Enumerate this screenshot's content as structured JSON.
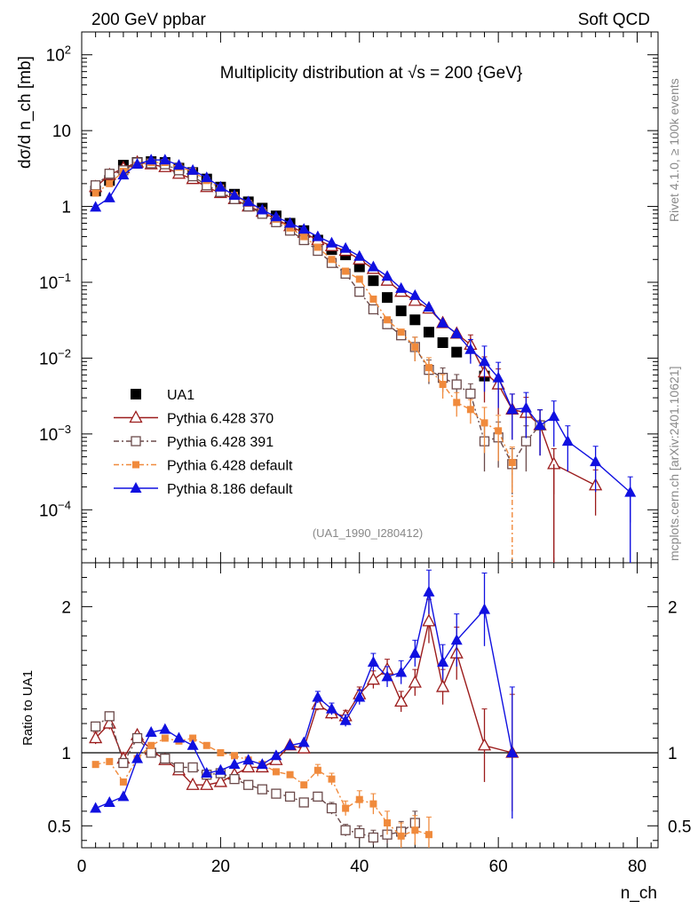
{
  "header": {
    "left": "200 GeV ppbar",
    "right": "Soft QCD"
  },
  "side": {
    "rivet": "Rivet 4.1.0, ≥ 100k events",
    "mcplots": "mcplots.cern.ch [arXiv:2401.10621]"
  },
  "chart_data": {
    "type": "scatter",
    "title": "Multiplicity distribution at √s = 200 {GeV}",
    "analysis_tag": "(UA1_1990_I280412)",
    "xlabel": "n_ch",
    "ylabel": "dσ/d n_ch [mb]",
    "ratio_ylabel": "Ratio to UA1",
    "xlim": [
      0,
      83
    ],
    "ylim_main": [
      2e-05,
      200
    ],
    "ylim_ratio": [
      0.35,
      2.3
    ],
    "x_ticks": [
      "0",
      "20",
      "40",
      "60",
      "80"
    ],
    "y_ticks_main": [
      "10^2",
      "10",
      "1",
      "10^-1",
      "10^-2",
      "10^-3",
      "10^-4"
    ],
    "y_ticks_ratio": [
      "2",
      "1",
      "0.5"
    ],
    "legend_location": "middle-left",
    "series": [
      {
        "name": "UA1",
        "color": "#000000",
        "marker": "filled-square",
        "x": [
          2,
          4,
          6,
          8,
          10,
          12,
          14,
          16,
          18,
          20,
          22,
          24,
          26,
          28,
          30,
          32,
          34,
          36,
          38,
          40,
          42,
          44,
          46,
          48,
          50,
          52,
          54,
          58
        ],
        "y": [
          1.6,
          2.2,
          3.5,
          3.8,
          3.9,
          3.8,
          3.2,
          2.8,
          2.3,
          1.8,
          1.45,
          1.15,
          0.95,
          0.75,
          0.6,
          0.48,
          0.36,
          0.27,
          0.23,
          0.16,
          0.105,
          0.063,
          0.042,
          0.032,
          0.022,
          0.016,
          0.012,
          0.0058
        ]
      },
      {
        "name": "Pythia 6.428 370",
        "color": "#9b1b1b",
        "marker": "open-triangle",
        "x": [
          2,
          4,
          6,
          8,
          10,
          12,
          14,
          16,
          18,
          20,
          22,
          24,
          26,
          28,
          30,
          32,
          34,
          36,
          38,
          40,
          42,
          44,
          46,
          48,
          50,
          52,
          54,
          56,
          58,
          60,
          62,
          64,
          66,
          68,
          74
        ],
        "y": [
          1.8,
          2.6,
          3.2,
          3.8,
          3.6,
          3.3,
          2.7,
          2.3,
          1.8,
          1.5,
          1.25,
          1.0,
          0.85,
          0.68,
          0.55,
          0.45,
          0.36,
          0.3,
          0.26,
          0.2,
          0.15,
          0.105,
          0.075,
          0.057,
          0.045,
          0.029,
          0.021,
          0.015,
          0.0065,
          0.0045,
          0.0021,
          0.0019,
          0.0013,
          0.0004,
          0.00021
        ],
        "ratio_x": [
          2,
          4,
          6,
          8,
          10,
          12,
          14,
          16,
          18,
          20,
          22,
          24,
          26,
          28,
          30,
          32,
          34,
          36,
          38,
          40,
          42,
          44,
          46,
          48,
          50,
          52,
          54,
          58,
          62
        ],
        "ratio": [
          1.1,
          1.2,
          0.96,
          1.12,
          1.02,
          0.95,
          0.88,
          0.78,
          0.78,
          0.8,
          0.85,
          0.9,
          0.9,
          0.95,
          1.05,
          1.03,
          1.33,
          1.27,
          1.25,
          1.4,
          1.5,
          1.57,
          1.35,
          1.48,
          1.9,
          1.45,
          1.68,
          1.05,
          1.0
        ],
        "ratio_err": [
          0.04,
          0.04,
          0.04,
          0.03,
          0.03,
          0.03,
          0.03,
          0.03,
          0.03,
          0.03,
          0.03,
          0.03,
          0.03,
          0.03,
          0.03,
          0.03,
          0.04,
          0.04,
          0.04,
          0.05,
          0.06,
          0.07,
          0.07,
          0.09,
          0.15,
          0.12,
          0.18,
          0.25,
          0.4
        ]
      },
      {
        "name": "Pythia 6.428 391",
        "color": "#6b4a4a",
        "marker": "open-square",
        "x": [
          2,
          4,
          6,
          8,
          10,
          12,
          14,
          16,
          18,
          20,
          22,
          24,
          26,
          28,
          30,
          32,
          34,
          36,
          38,
          40,
          42,
          44,
          46,
          48,
          50,
          52,
          54,
          56,
          58,
          60,
          62,
          64,
          66
        ],
        "y": [
          1.9,
          2.7,
          3.0,
          3.8,
          3.7,
          3.6,
          3.0,
          2.5,
          1.9,
          1.55,
          1.25,
          1.0,
          0.8,
          0.62,
          0.48,
          0.36,
          0.26,
          0.18,
          0.13,
          0.075,
          0.044,
          0.028,
          0.02,
          0.014,
          0.007,
          0.0055,
          0.0045,
          0.0034,
          0.0008,
          0.0009,
          0.0004,
          0.0008,
          0.0013
        ],
        "ratio_x": [
          2,
          4,
          6,
          8,
          10,
          12,
          14,
          16,
          18,
          20,
          22,
          24,
          26,
          28,
          30,
          32,
          34,
          36,
          38,
          40,
          42,
          44,
          46,
          48
        ],
        "ratio": [
          1.18,
          1.25,
          0.93,
          1.1,
          1.0,
          0.96,
          0.9,
          0.9,
          0.85,
          0.86,
          0.82,
          0.78,
          0.75,
          0.72,
          0.7,
          0.66,
          0.7,
          0.62,
          0.47,
          0.45,
          0.42,
          0.44,
          0.46,
          0.52
        ],
        "ratio_err": [
          0.03,
          0.03,
          0.03,
          0.03,
          0.03,
          0.03,
          0.03,
          0.03,
          0.03,
          0.03,
          0.03,
          0.03,
          0.03,
          0.03,
          0.03,
          0.03,
          0.03,
          0.04,
          0.04,
          0.05,
          0.05,
          0.06,
          0.07,
          0.08
        ]
      },
      {
        "name": "Pythia 6.428 default",
        "color": "#f08a3c",
        "marker": "filled-small-square",
        "x": [
          2,
          4,
          6,
          8,
          10,
          12,
          14,
          16,
          18,
          20,
          22,
          24,
          26,
          28,
          30,
          32,
          34,
          36,
          38,
          40,
          42,
          44,
          46,
          48,
          50,
          52,
          54,
          56,
          58,
          60,
          62
        ],
        "y": [
          1.5,
          2.0,
          2.9,
          3.5,
          3.8,
          3.8,
          3.3,
          2.9,
          2.2,
          1.75,
          1.4,
          1.1,
          0.88,
          0.68,
          0.52,
          0.4,
          0.29,
          0.2,
          0.14,
          0.11,
          0.06,
          0.032,
          0.022,
          0.014,
          0.0075,
          0.0045,
          0.0026,
          0.0021,
          0.0014,
          0.0011,
          0.00042
        ],
        "ratio_x": [
          2,
          4,
          6,
          8,
          10,
          12,
          14,
          16,
          18,
          20,
          22,
          24,
          26,
          28,
          30,
          32,
          34,
          36,
          38,
          40,
          42,
          44,
          46,
          48,
          50
        ],
        "ratio": [
          0.92,
          0.94,
          0.8,
          0.96,
          1.05,
          1.1,
          1.08,
          1.1,
          1.05,
          1.0,
          0.98,
          0.95,
          0.92,
          0.87,
          0.85,
          0.78,
          0.88,
          0.82,
          0.62,
          0.68,
          0.65,
          0.52,
          0.43,
          0.47,
          0.44
        ],
        "ratio_err": [
          0.03,
          0.03,
          0.03,
          0.03,
          0.03,
          0.03,
          0.03,
          0.03,
          0.03,
          0.03,
          0.03,
          0.03,
          0.03,
          0.03,
          0.03,
          0.03,
          0.04,
          0.04,
          0.05,
          0.06,
          0.07,
          0.08,
          0.09,
          0.1,
          0.12
        ]
      },
      {
        "name": "Pythia 8.186 default",
        "color": "#1010e0",
        "marker": "filled-triangle",
        "x": [
          2,
          4,
          6,
          8,
          10,
          12,
          14,
          16,
          18,
          20,
          22,
          24,
          26,
          28,
          30,
          32,
          34,
          36,
          38,
          40,
          42,
          44,
          46,
          48,
          50,
          52,
          54,
          56,
          58,
          60,
          62,
          64,
          66,
          68,
          70,
          74,
          79
        ],
        "y": [
          0.98,
          1.3,
          2.6,
          3.6,
          4.1,
          4.1,
          3.5,
          3.0,
          2.4,
          1.8,
          1.4,
          1.15,
          0.9,
          0.73,
          0.6,
          0.5,
          0.4,
          0.33,
          0.28,
          0.22,
          0.16,
          0.12,
          0.083,
          0.067,
          0.047,
          0.029,
          0.021,
          0.013,
          0.009,
          0.0055,
          0.0021,
          0.0022,
          0.0013,
          0.0017,
          0.0008,
          0.00043,
          0.00017
        ],
        "ratio_x": [
          2,
          4,
          6,
          8,
          10,
          12,
          14,
          16,
          18,
          20,
          22,
          24,
          26,
          28,
          30,
          32,
          34,
          36,
          38,
          40,
          42,
          44,
          46,
          48,
          50,
          52,
          54,
          58,
          62
        ],
        "ratio": [
          0.62,
          0.66,
          0.7,
          0.96,
          1.14,
          1.16,
          1.1,
          1.05,
          0.86,
          0.88,
          0.92,
          0.95,
          0.92,
          0.98,
          1.05,
          1.07,
          1.38,
          1.3,
          1.22,
          1.38,
          1.62,
          1.52,
          1.55,
          1.68,
          2.1,
          1.62,
          1.77,
          1.98,
          1.0
        ],
        "ratio_err": [
          0.02,
          0.02,
          0.02,
          0.03,
          0.03,
          0.03,
          0.03,
          0.03,
          0.03,
          0.03,
          0.03,
          0.03,
          0.03,
          0.03,
          0.03,
          0.03,
          0.04,
          0.04,
          0.04,
          0.05,
          0.06,
          0.07,
          0.08,
          0.09,
          0.15,
          0.12,
          0.18,
          0.25,
          0.45
        ]
      }
    ]
  }
}
